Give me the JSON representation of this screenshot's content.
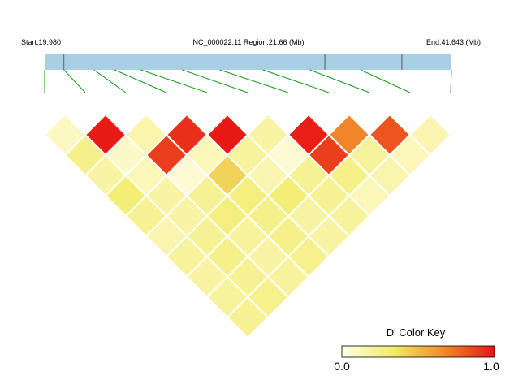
{
  "header": {
    "start_label": "Start:19.980",
    "region_label": "NC_000022.11 Region:21.66 (Mb)",
    "end_label": "End:41.643 (Mb)"
  },
  "color_key": {
    "title": "D' Color Key",
    "min_label": "0.0",
    "max_label": "1.0",
    "gradient": [
      "#fffde6",
      "#f2ec6a",
      "#f08a2a",
      "#e81414"
    ]
  },
  "colors": {
    "bar": "#a8cfe3",
    "connector": "#1a9a1a",
    "tick": "#6e7a80"
  },
  "chart_data": {
    "type": "heatmap",
    "title": "",
    "region": {
      "start_mb": 19.98,
      "end_mb": 41.643,
      "length_mb": 21.66
    },
    "snp_count": 11,
    "snp_positions_mb": [
      19.98,
      21.0,
      22.6,
      23.7,
      25.1,
      27.3,
      29.3,
      31.6,
      34.1,
      36.8,
      41.643
    ],
    "bar_ticks_mb": [
      21.0,
      34.9,
      39.0
    ],
    "d_prime": [
      [
        0.1,
        0.98,
        0.16,
        0.92,
        0.99,
        0.18,
        0.97,
        0.68,
        0.82,
        0.14
      ],
      [
        0.25,
        0.08,
        0.88,
        0.12,
        0.2,
        0.05,
        0.88,
        0.2,
        0.12
      ],
      [
        0.18,
        0.12,
        0.05,
        0.42,
        0.14,
        0.22,
        0.25,
        0.15
      ],
      [
        0.3,
        0.18,
        0.22,
        0.28,
        0.3,
        0.22,
        0.12
      ],
      [
        0.22,
        0.18,
        0.28,
        0.25,
        0.18,
        0.2
      ],
      [
        0.15,
        0.22,
        0.2,
        0.25,
        0.18
      ],
      [
        0.2,
        0.25,
        0.18,
        0.24
      ],
      [
        0.18,
        0.22,
        0.2
      ],
      [
        0.2,
        0.24
      ],
      [
        0.22
      ]
    ]
  }
}
